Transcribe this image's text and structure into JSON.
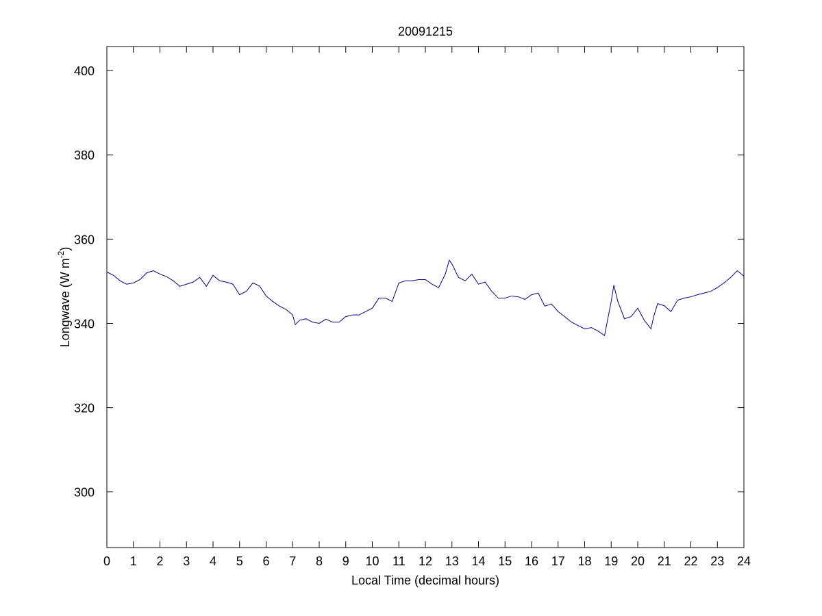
{
  "chart_data": {
    "type": "line",
    "title": "20091215",
    "xlabel": "Local Time (decimal hours)",
    "ylabel": "Longwave (W m",
    "ylabel_superscript": "-2",
    "ylabel_end": ")",
    "x": [
      0,
      0.25,
      0.5,
      0.75,
      1,
      1.25,
      1.5,
      1.75,
      2,
      2.25,
      2.5,
      2.75,
      3,
      3.25,
      3.5,
      3.75,
      4,
      4.25,
      4.5,
      4.75,
      5,
      5.25,
      5.5,
      5.75,
      6,
      6.25,
      6.5,
      6.75,
      7,
      7.1,
      7.25,
      7.5,
      7.75,
      8,
      8.25,
      8.5,
      8.75,
      9,
      9.25,
      9.5,
      9.75,
      10,
      10.25,
      10.5,
      10.75,
      11,
      11.25,
      11.5,
      11.75,
      12,
      12.25,
      12.5,
      12.75,
      12.9,
      13,
      13.25,
      13.5,
      13.75,
      14,
      14.25,
      14.5,
      14.75,
      15,
      15.25,
      15.5,
      15.75,
      16,
      16.25,
      16.5,
      16.75,
      17,
      17.25,
      17.5,
      17.75,
      18,
      18.25,
      18.5,
      18.75,
      19,
      19.1,
      19.25,
      19.5,
      19.75,
      20,
      20.25,
      20.5,
      20.6,
      20.75,
      21,
      21.25,
      21.5,
      21.75,
      22,
      22.25,
      22.5,
      22.75,
      23,
      23.25,
      23.5,
      23.75,
      24
    ],
    "series": [
      {
        "color": "#00008b",
        "values": [
          352.2,
          351.4,
          350.1,
          349.3,
          349.6,
          350.4,
          352.0,
          352.5,
          351.7,
          351.1,
          350.1,
          348.8,
          349.3,
          349.8,
          350.9,
          348.8,
          351.4,
          350.1,
          349.8,
          349.3,
          346.8,
          347.6,
          349.6,
          348.9,
          346.5,
          345.2,
          344.1,
          343.3,
          342.0,
          339.7,
          340.7,
          341.1,
          340.3,
          340.0,
          341.0,
          340.3,
          340.3,
          341.6,
          342.0,
          342.0,
          342.8,
          343.6,
          346.0,
          346.0,
          345.2,
          349.6,
          350.1,
          350.1,
          350.4,
          350.4,
          349.3,
          348.5,
          351.7,
          355.0,
          354.1,
          350.9,
          350.1,
          351.7,
          349.3,
          349.8,
          347.6,
          346.0,
          346.0,
          346.5,
          346.3,
          345.7,
          346.8,
          347.2,
          344.1,
          344.6,
          342.8,
          341.6,
          340.3,
          339.5,
          338.7,
          339.0,
          338.2,
          337.1,
          345.2,
          349.1,
          345.2,
          341.1,
          341.6,
          343.6,
          340.7,
          338.7,
          341.6,
          344.7,
          344.2,
          342.8,
          345.5,
          346.0,
          346.3,
          346.8,
          347.2,
          347.6,
          348.5,
          349.6,
          350.9,
          352.5,
          351.2
        ]
      }
    ],
    "xlim": [
      0,
      24
    ],
    "xticks": [
      0,
      1,
      2,
      3,
      4,
      5,
      6,
      7,
      8,
      9,
      10,
      11,
      12,
      13,
      14,
      15,
      16,
      17,
      18,
      19,
      20,
      21,
      22,
      23,
      24
    ],
    "ylim": [
      286.8,
      405.7
    ],
    "yticks": [
      300,
      320,
      340,
      360,
      380,
      400
    ]
  }
}
